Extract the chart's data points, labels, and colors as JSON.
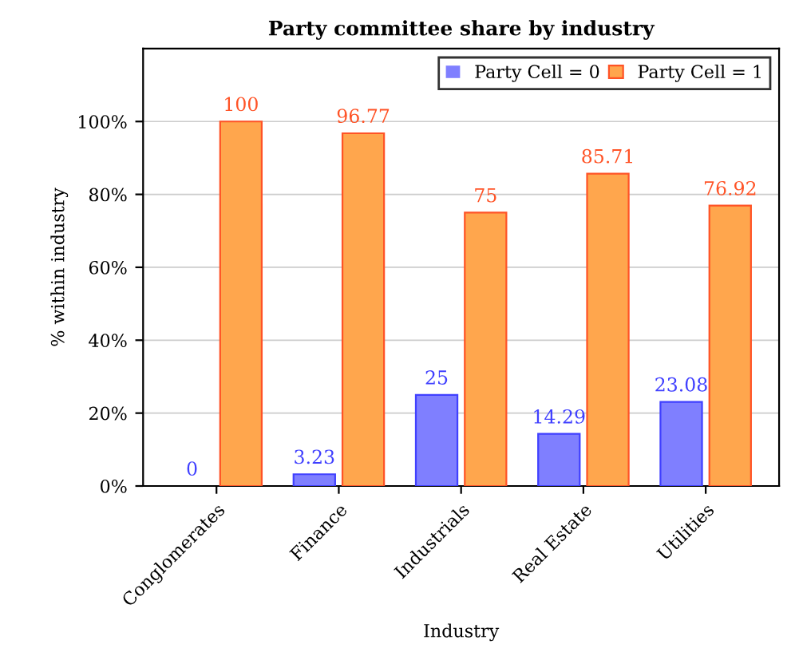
{
  "chart_data": {
    "type": "bar",
    "title": "Party committee share by industry",
    "xlabel": "Industry",
    "ylabel": "% within industry",
    "categories": [
      "Conglomerates",
      "Finance",
      "Industrials",
      "Real Estate",
      "Utilities"
    ],
    "series": [
      {
        "name": "Party Cell = 0",
        "color": "#7f7fff",
        "values": [
          0,
          3.23,
          25,
          14.29,
          23.08
        ]
      },
      {
        "name": "Party Cell = 1",
        "color": "#ffa64d",
        "values": [
          100,
          96.77,
          75,
          85.71,
          76.92
        ]
      }
    ],
    "ylim": [
      0,
      120
    ],
    "yticks": [
      {
        "value": 0,
        "label": "0%"
      },
      {
        "value": 20,
        "label": "20%"
      },
      {
        "value": 40,
        "label": "40%"
      },
      {
        "value": 60,
        "label": "60%"
      },
      {
        "value": 80,
        "label": "80%"
      },
      {
        "value": 100,
        "label": "100%"
      }
    ],
    "grid": "y",
    "legend": "top right",
    "data_labels": true
  }
}
